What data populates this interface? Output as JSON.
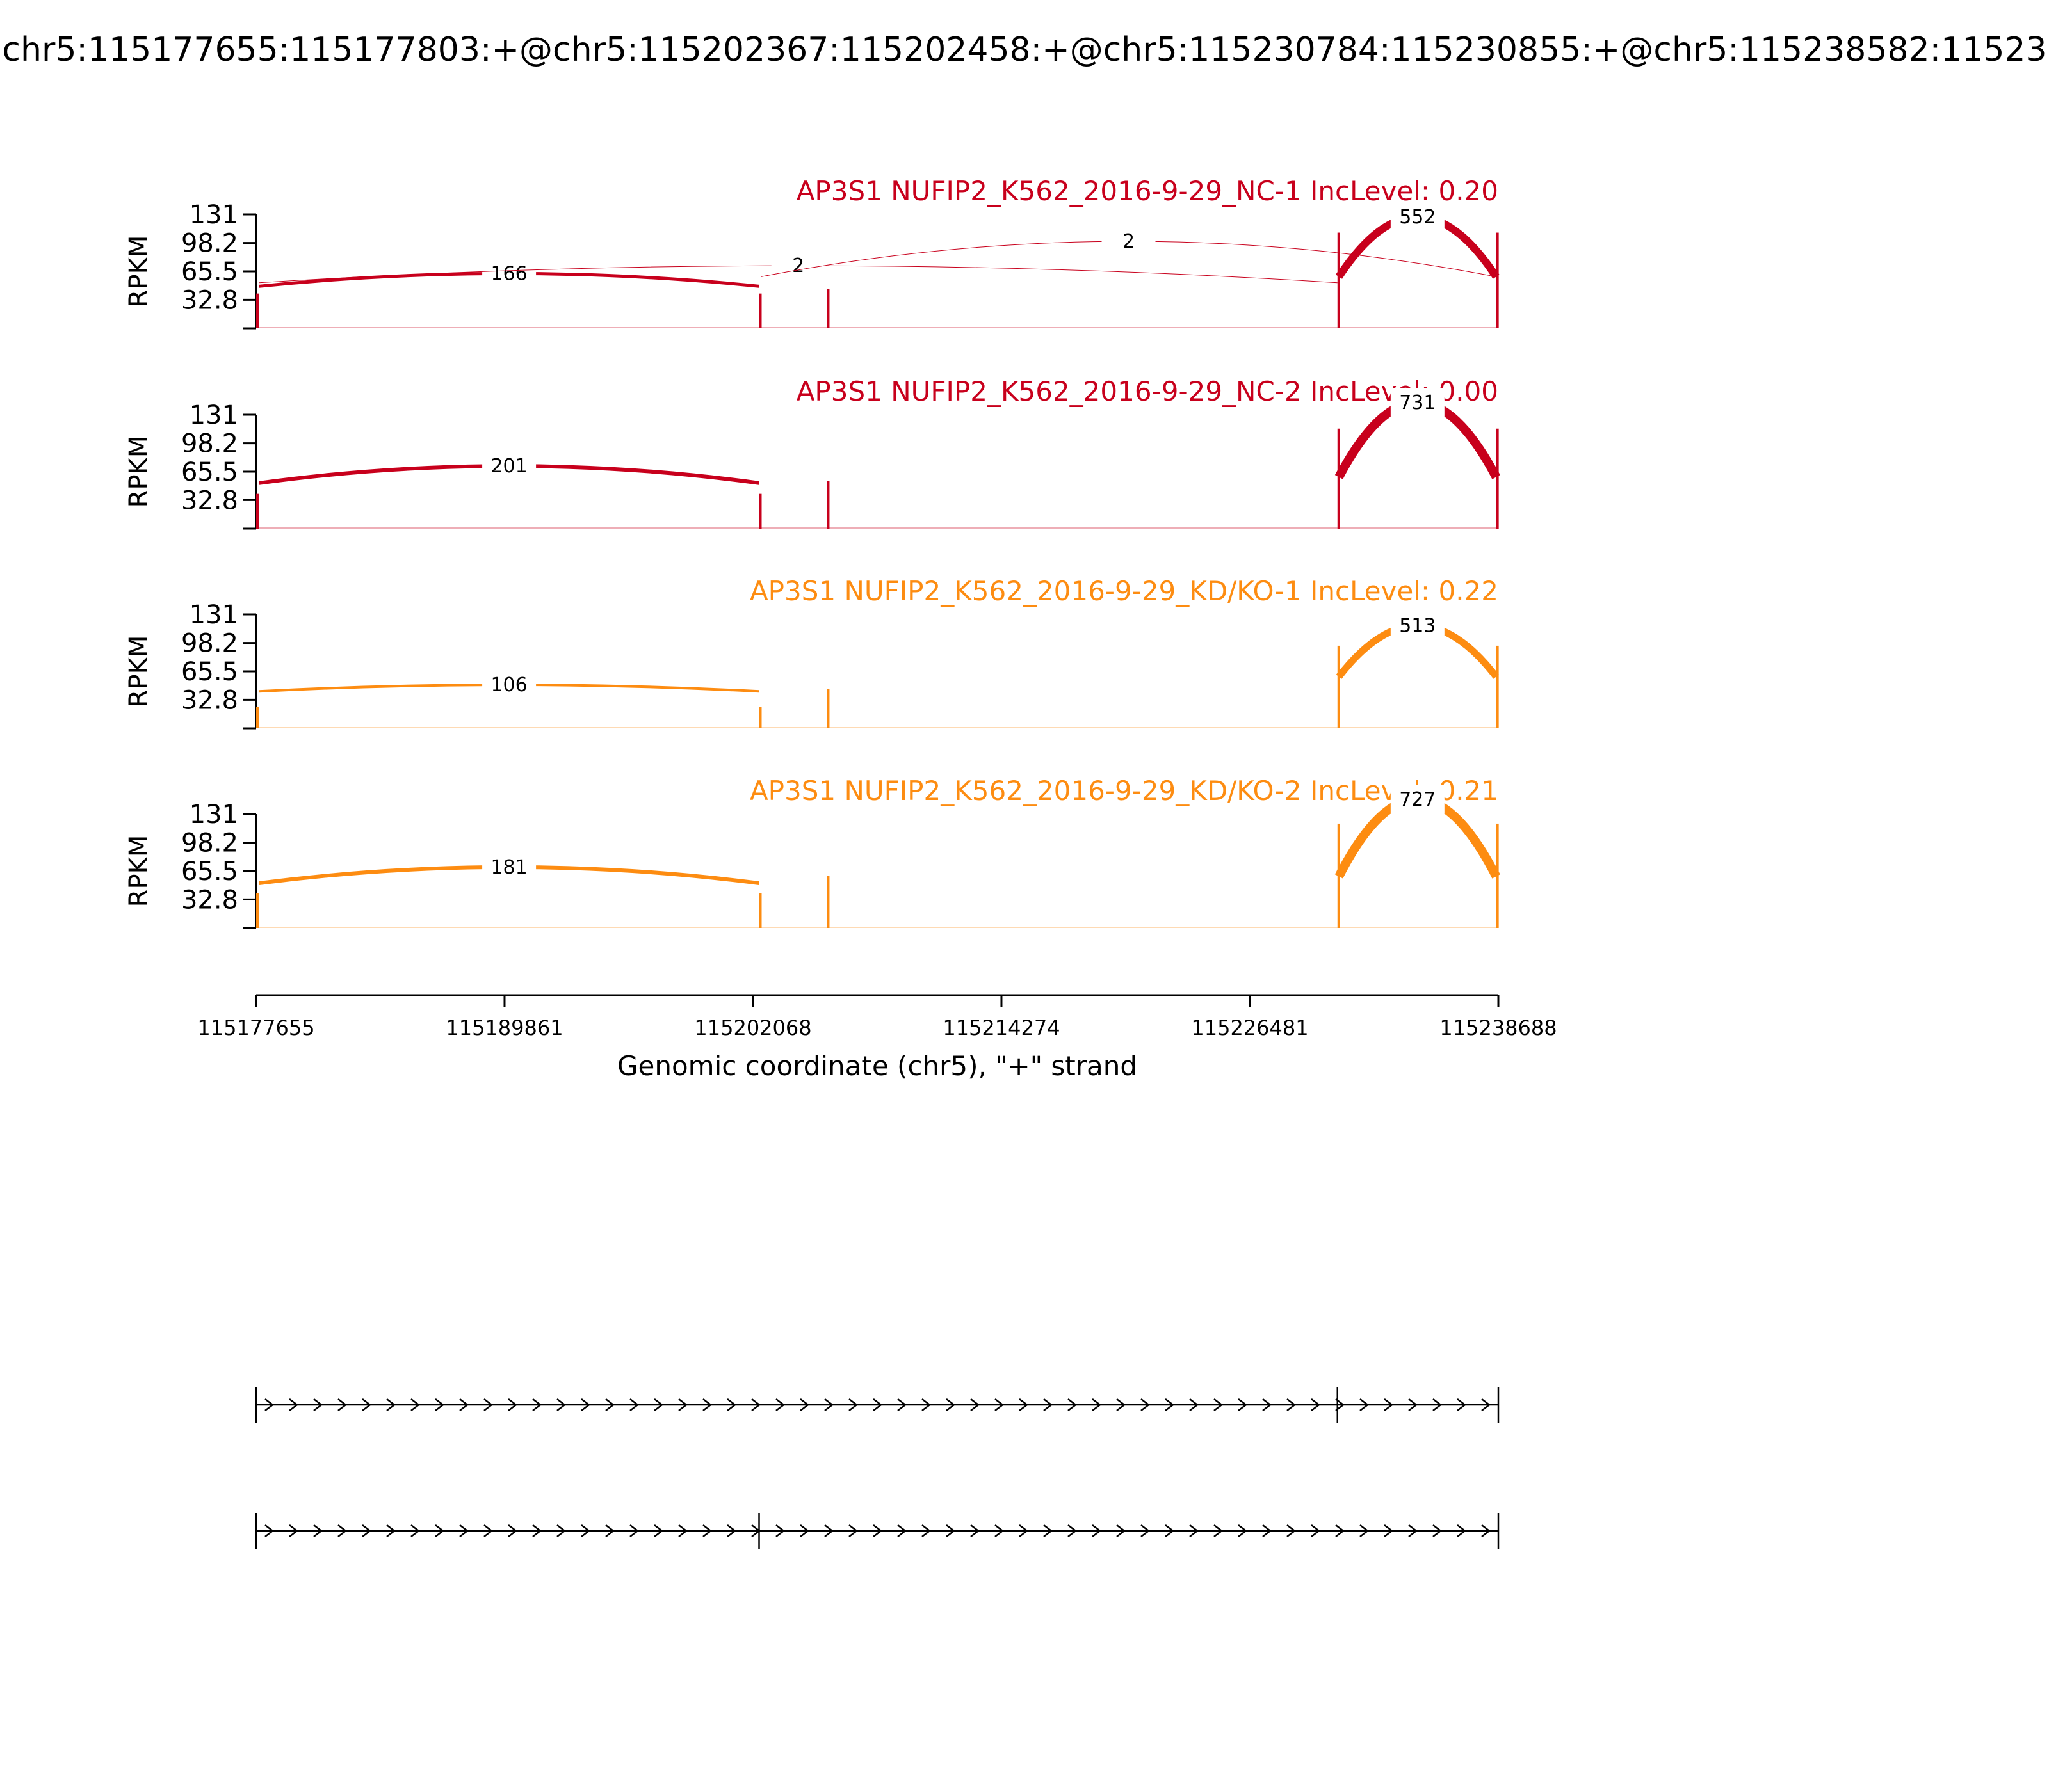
{
  "title": "chr5:115177655:115177803:+@chr5:115202367:115202458:+@chr5:115230784:115230855:+@chr5:115238582:11523",
  "chart_data": {
    "type": "sashimi",
    "ylabel": "RPKM",
    "yticks": [
      "32.8",
      "65.5",
      "98.2",
      "131"
    ],
    "ytick_values": [
      32.8,
      65.5,
      98.2,
      131
    ],
    "ylim": [
      0,
      131
    ],
    "xlim": [
      115177655,
      115238688
    ],
    "xticks": [
      115177655,
      115189861,
      115202068,
      115214274,
      115226481,
      115238688
    ],
    "xtick_labels": [
      "115177655",
      "115189861",
      "115202068",
      "115214274",
      "115226481",
      "115238688"
    ],
    "xlabel": "Genomic coordinate (chr5), \"+\" strand",
    "exons": [
      {
        "start": 115177655,
        "end": 115177803
      },
      {
        "start": 115202367,
        "end": 115202458
      },
      {
        "start": 115230784,
        "end": 115230855
      },
      {
        "start": 115238582,
        "end": 115238688
      }
    ],
    "panels": [
      {
        "label": "AP3S1 NUFIP2_K562_2016-9-29_NC-1 IncLevel: 0.20",
        "color": "#c8001c",
        "coverage": [
          {
            "start": 115177655,
            "end": 115177803,
            "height": 40
          },
          {
            "start": 115202367,
            "end": 115202458,
            "height": 40
          },
          {
            "start": 115205700,
            "end": 115205800,
            "height": 45
          },
          {
            "start": 115230784,
            "end": 115230855,
            "height": 110
          },
          {
            "start": 115238582,
            "end": 115238688,
            "height": 110
          }
        ],
        "junctions": [
          {
            "start": 115177803,
            "end": 115202367,
            "count": "166",
            "value": 166,
            "peak": 63,
            "width": 5
          },
          {
            "start": 115177803,
            "end": 115230784,
            "count": "2",
            "value": 2,
            "peak": 72,
            "width": 1
          },
          {
            "start": 115202458,
            "end": 115238582,
            "count": "2",
            "value": 2,
            "peak": 100,
            "width": 1
          },
          {
            "start": 115230855,
            "end": 115238582,
            "count": "552",
            "value": 552,
            "peak": 128,
            "width": 12
          }
        ]
      },
      {
        "label": "AP3S1 NUFIP2_K562_2016-9-29_NC-2 IncLevel: 0.00",
        "color": "#c8001c",
        "coverage": [
          {
            "start": 115177655,
            "end": 115177803,
            "height": 40
          },
          {
            "start": 115202367,
            "end": 115202458,
            "height": 40
          },
          {
            "start": 115205700,
            "end": 115205800,
            "height": 55
          },
          {
            "start": 115230784,
            "end": 115230855,
            "height": 115
          },
          {
            "start": 115238582,
            "end": 115238688,
            "height": 115
          }
        ],
        "junctions": [
          {
            "start": 115177803,
            "end": 115202367,
            "count": "201",
            "value": 201,
            "peak": 72,
            "width": 6
          },
          {
            "start": 115230855,
            "end": 115238582,
            "count": "731",
            "value": 731,
            "peak": 145,
            "width": 14
          }
        ]
      },
      {
        "label": "AP3S1 NUFIP2_K562_2016-9-29_KD/KO-1 IncLevel: 0.22",
        "color": "#fd8c11",
        "coverage": [
          {
            "start": 115177655,
            "end": 115177803,
            "height": 25
          },
          {
            "start": 115202367,
            "end": 115202458,
            "height": 25
          },
          {
            "start": 115205700,
            "end": 115205800,
            "height": 45
          },
          {
            "start": 115230784,
            "end": 115230855,
            "height": 95
          },
          {
            "start": 115238582,
            "end": 115238688,
            "height": 95
          }
        ],
        "junctions": [
          {
            "start": 115177803,
            "end": 115202367,
            "count": "106",
            "value": 106,
            "peak": 50,
            "width": 4
          },
          {
            "start": 115230855,
            "end": 115238582,
            "count": "513",
            "value": 513,
            "peak": 118,
            "width": 11
          }
        ]
      },
      {
        "label": "AP3S1 NUFIP2_K562_2016-9-29_KD/KO-2 IncLevel: 0.21",
        "color": "#fd8c11",
        "coverage": [
          {
            "start": 115177655,
            "end": 115177803,
            "height": 40
          },
          {
            "start": 115202367,
            "end": 115202458,
            "height": 40
          },
          {
            "start": 115205700,
            "end": 115205800,
            "height": 60
          },
          {
            "start": 115230784,
            "end": 115230855,
            "height": 120
          },
          {
            "start": 115238582,
            "end": 115238688,
            "height": 120
          }
        ],
        "junctions": [
          {
            "start": 115177803,
            "end": 115202367,
            "count": "181",
            "value": 181,
            "peak": 70,
            "width": 6
          },
          {
            "start": 115230855,
            "end": 115238582,
            "count": "727",
            "value": 727,
            "peak": 148,
            "width": 14
          }
        ]
      }
    ],
    "isoforms": [
      {
        "exons": [
          115177655,
          115230784,
          115238688
        ]
      },
      {
        "exons": [
          115177655,
          115202367,
          115238688
        ]
      }
    ]
  }
}
